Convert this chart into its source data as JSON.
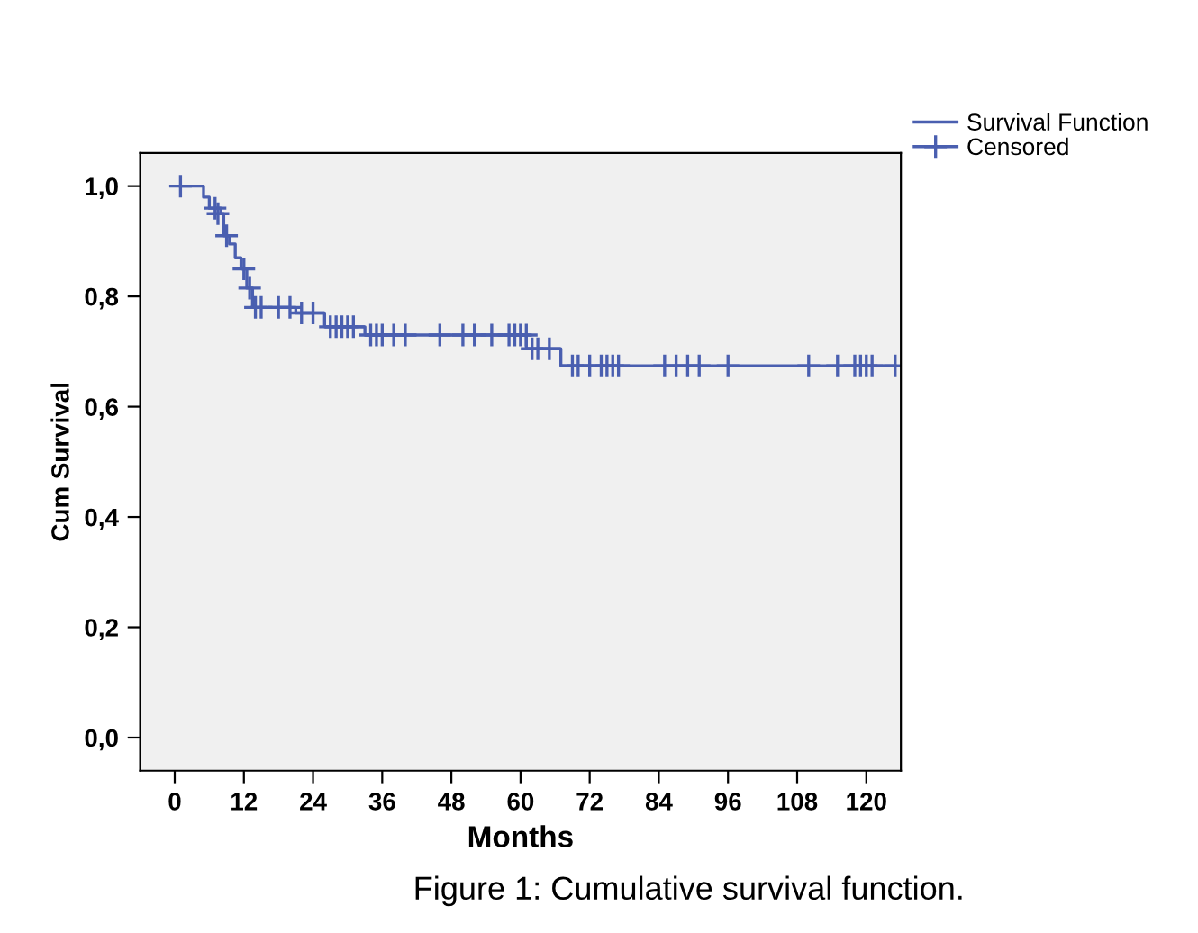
{
  "chart_data": {
    "type": "step",
    "xlabel": "Months",
    "ylabel": "Cum Survival",
    "annotations": [
      "Figure 1: Cumulative survival function."
    ],
    "xlim": [
      -6,
      126
    ],
    "ylim": [
      -0.06,
      1.06
    ],
    "xticks": [
      0,
      12,
      24,
      36,
      48,
      60,
      72,
      84,
      96,
      108,
      120
    ],
    "yticks": [
      {
        "value": 0.0,
        "label": "0,0"
      },
      {
        "value": 0.2,
        "label": "0,2"
      },
      {
        "value": 0.4,
        "label": "0,4"
      },
      {
        "value": 0.6,
        "label": "0,6"
      },
      {
        "value": 0.8,
        "label": "0,8"
      },
      {
        "value": 1.0,
        "label": "1,0"
      }
    ],
    "grid": false,
    "legend": "top right",
    "series": [
      {
        "name": "Survival Function",
        "color": "#4a5fb0",
        "x": [
          1,
          5,
          6,
          8,
          8.5,
          9.5,
          10.5,
          11.5,
          12.5,
          13.5,
          21,
          26,
          33,
          61,
          67,
          125
        ],
        "values": [
          1.0,
          0.98,
          0.96,
          0.95,
          0.91,
          0.895,
          0.87,
          0.85,
          0.815,
          0.78,
          0.77,
          0.745,
          0.73,
          0.705,
          0.674,
          0.674
        ]
      },
      {
        "name": "Censored",
        "type": "scatter",
        "marker": "cross",
        "color": "#4a5fb0",
        "x": [
          1,
          7,
          7.5,
          9,
          12,
          13,
          14,
          15,
          18,
          20,
          22,
          24,
          27,
          28,
          29,
          30,
          31,
          34,
          35,
          36,
          38,
          40,
          46,
          50,
          52,
          55,
          58,
          59,
          60,
          61,
          62,
          63,
          65,
          69,
          70,
          72,
          74,
          75,
          76,
          77,
          85,
          87,
          89,
          91,
          96,
          110,
          115,
          118,
          119,
          120,
          121,
          125
        ],
        "values": [
          1.0,
          0.96,
          0.95,
          0.91,
          0.85,
          0.815,
          0.78,
          0.78,
          0.78,
          0.78,
          0.77,
          0.77,
          0.745,
          0.745,
          0.745,
          0.745,
          0.745,
          0.73,
          0.73,
          0.73,
          0.73,
          0.73,
          0.73,
          0.73,
          0.73,
          0.73,
          0.73,
          0.73,
          0.73,
          0.73,
          0.705,
          0.705,
          0.705,
          0.674,
          0.674,
          0.674,
          0.674,
          0.674,
          0.674,
          0.674,
          0.674,
          0.674,
          0.674,
          0.674,
          0.674,
          0.674,
          0.674,
          0.674,
          0.674,
          0.674,
          0.674,
          0.674
        ]
      }
    ]
  }
}
